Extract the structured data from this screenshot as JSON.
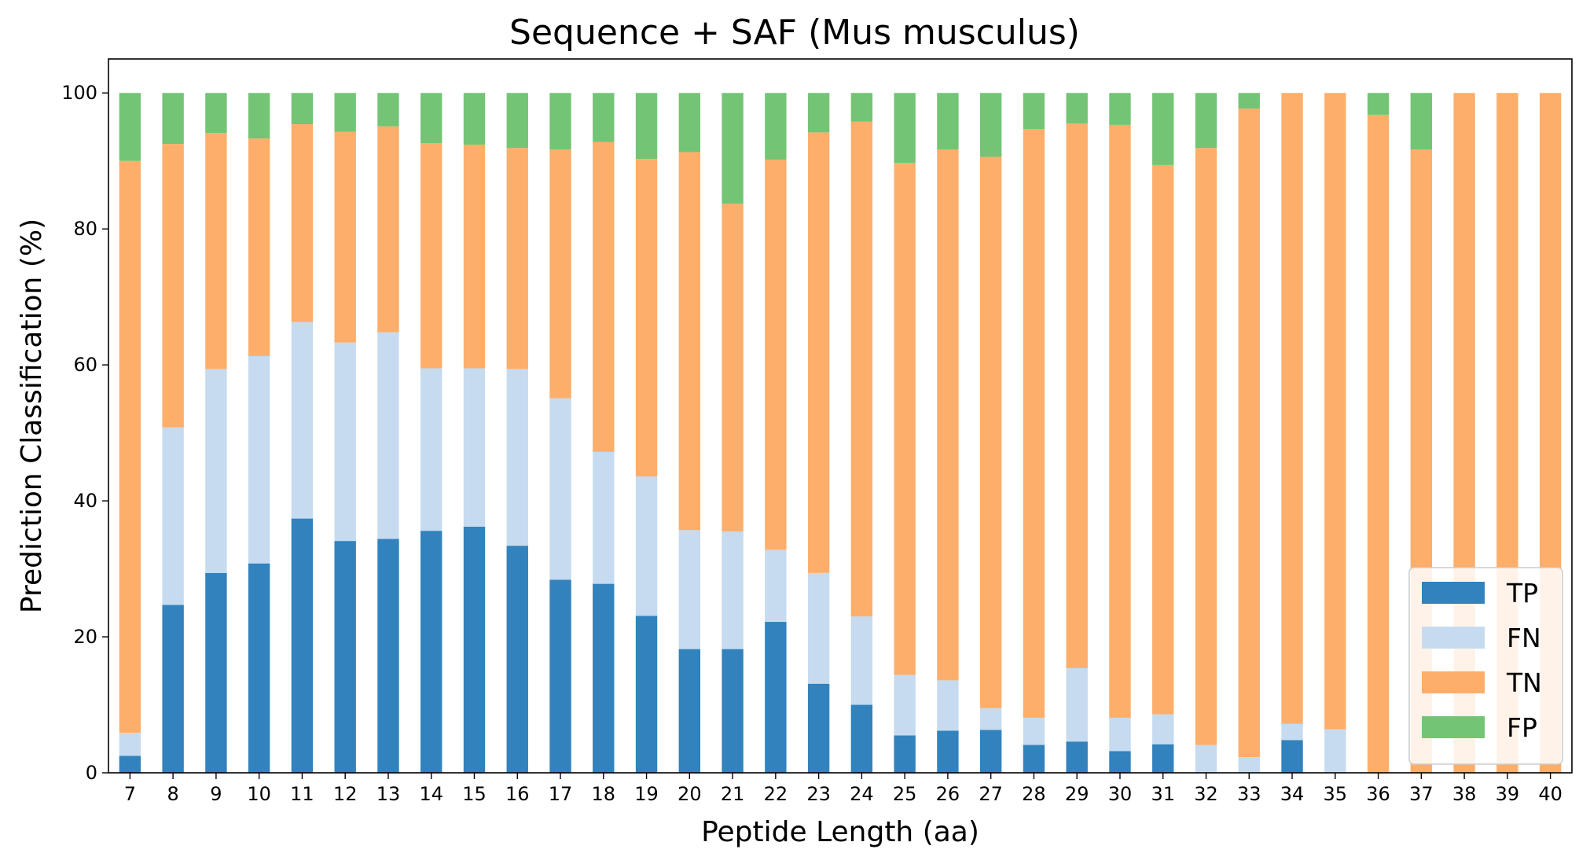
{
  "chart_data": {
    "type": "bar",
    "stacked": true,
    "title": "Sequence + SAF (Mus musculus)",
    "xlabel": "Peptide Length (aa)",
    "ylabel": "Prediction Classification (%)",
    "ylim": [
      0,
      105
    ],
    "yticks": [
      0,
      20,
      40,
      60,
      80,
      100
    ],
    "grid": false,
    "legend_position": "lower-right",
    "categories": [
      "7",
      "8",
      "9",
      "10",
      "11",
      "12",
      "13",
      "14",
      "15",
      "16",
      "17",
      "18",
      "19",
      "20",
      "21",
      "22",
      "23",
      "24",
      "25",
      "26",
      "27",
      "28",
      "29",
      "30",
      "31",
      "32",
      "33",
      "34",
      "35",
      "36",
      "37",
      "38",
      "39",
      "40"
    ],
    "series": [
      {
        "name": "TP",
        "color": "#3182bd",
        "values": [
          2.5,
          24.7,
          29.4,
          30.8,
          37.4,
          34.1,
          34.4,
          35.6,
          36.2,
          33.4,
          28.4,
          27.8,
          23.1,
          18.2,
          18.2,
          22.2,
          13.1,
          10.0,
          5.5,
          6.2,
          6.3,
          4.1,
          4.6,
          3.2,
          4.2,
          0,
          0,
          4.8,
          0,
          0,
          0,
          0,
          0,
          0
        ]
      },
      {
        "name": "FN",
        "color": "#c6dbef",
        "values": [
          3.4,
          26.1,
          30.0,
          30.5,
          28.9,
          29.2,
          30.4,
          23.9,
          23.3,
          26.0,
          26.7,
          19.4,
          20.5,
          17.5,
          17.3,
          10.6,
          16.3,
          13.0,
          8.9,
          7.4,
          3.2,
          4.0,
          10.8,
          4.9,
          4.4,
          4.1,
          2.3,
          2.4,
          6.4,
          0,
          0,
          0,
          0,
          0
        ]
      },
      {
        "name": "TN",
        "color": "#fdae6b",
        "values": [
          84.1,
          41.7,
          34.7,
          32.0,
          29.1,
          31.0,
          30.3,
          33.1,
          32.9,
          32.5,
          36.6,
          45.6,
          46.7,
          55.6,
          48.2,
          57.4,
          64.8,
          72.8,
          75.3,
          78.1,
          81.1,
          86.6,
          80.1,
          87.2,
          80.8,
          87.8,
          95.4,
          92.8,
          93.6,
          96.8,
          91.7,
          100,
          100,
          100
        ]
      },
      {
        "name": "FP",
        "color": "#74c476",
        "values": [
          10.0,
          7.5,
          5.9,
          6.7,
          4.6,
          5.7,
          4.9,
          7.4,
          7.6,
          8.1,
          8.3,
          7.2,
          9.7,
          8.7,
          16.3,
          9.8,
          5.8,
          4.2,
          10.3,
          8.3,
          9.4,
          5.3,
          4.5,
          4.7,
          10.6,
          8.1,
          2.3,
          0,
          0,
          3.2,
          8.3,
          0,
          0,
          0
        ]
      }
    ]
  }
}
